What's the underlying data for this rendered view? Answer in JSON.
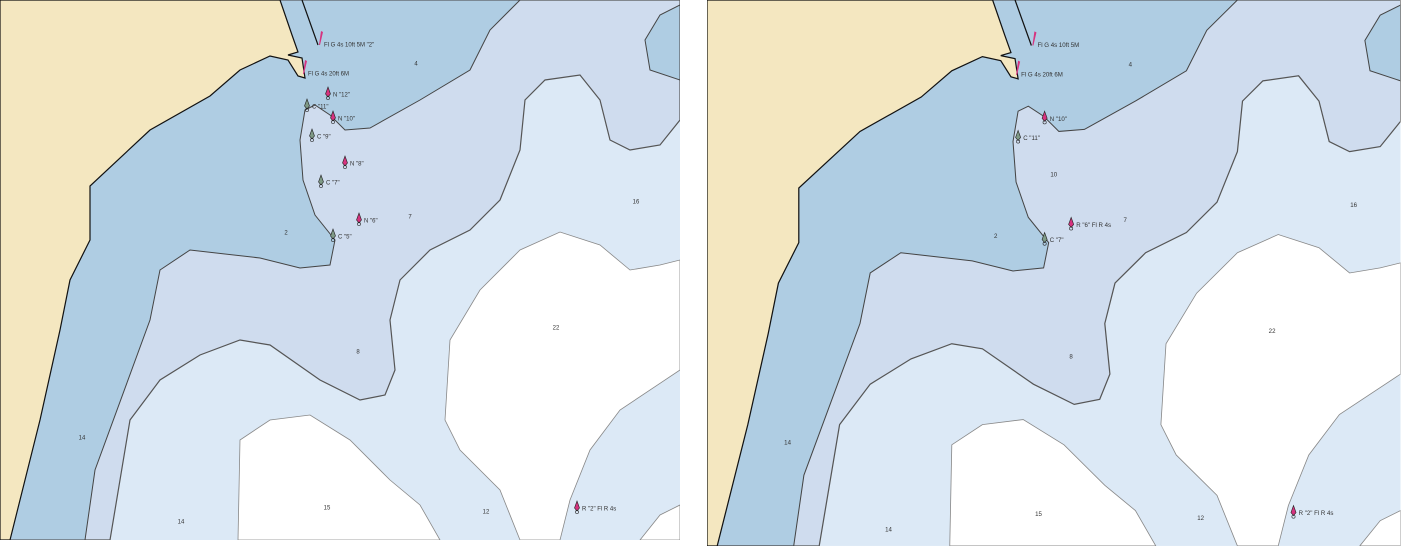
{
  "panels": [
    {
      "lights": [
        "Fl G 4s 10ft 5M \"2\"",
        "Fl G 4s 20ft 6M"
      ],
      "depths": [
        "4",
        "7",
        "2",
        "16",
        "22",
        "8",
        "14",
        "14",
        "15",
        "12"
      ],
      "aids": [
        {
          "label": "N \"12\"",
          "color": "#d6337f"
        },
        {
          "label": "C \"11\"",
          "color": "#7f9a86"
        },
        {
          "label": "N \"10\"",
          "color": "#d6337f"
        },
        {
          "label": "C \"9\"",
          "color": "#7f9a86"
        },
        {
          "label": "N \"8\"",
          "color": "#d6337f"
        },
        {
          "label": "C \"7\"",
          "color": "#7f9a86"
        },
        {
          "label": "N \"6\"",
          "color": "#d6337f"
        },
        {
          "label": "C \"5\"",
          "color": "#7f9a86"
        },
        {
          "label": "R \"2\" Fl R 4s",
          "color": "#d6337f"
        }
      ]
    },
    {
      "lights": [
        "Fl G 4s 10ft 5M",
        "Fl G 4s 20ft 6M"
      ],
      "depths": [
        "4",
        "10",
        "7",
        "2",
        "16",
        "22",
        "8",
        "14",
        "14",
        "15",
        "12"
      ],
      "aids": [
        {
          "label": "N \"10\"",
          "color": "#d6337f"
        },
        {
          "label": "C \"11\"",
          "color": "#7f9a86"
        },
        {
          "label": "C \"7\"",
          "color": "#7f9a86"
        },
        {
          "label": "R \"6\" Fl R 4s",
          "color": "#d6337f"
        },
        {
          "label": "R \"2\" Fl R 4s",
          "color": "#d6337f"
        }
      ]
    }
  ]
}
